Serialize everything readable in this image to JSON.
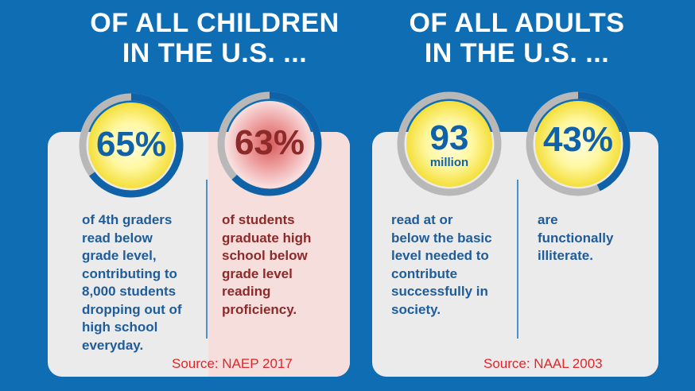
{
  "headings": {
    "children": [
      "OF ALL CHILDREN",
      "IN THE U.S. ..."
    ],
    "adults": [
      "OF ALL ADULTS",
      "IN THE U.S. ..."
    ]
  },
  "children": {
    "stat1": {
      "value": "65%",
      "text": [
        "of 4th graders",
        "read below",
        "grade level,",
        "contributing to",
        "8,000 students",
        "dropping out of",
        "high school",
        "everyday."
      ]
    },
    "stat2": {
      "value": "63%",
      "text": [
        "of students",
        "graduate high",
        "school below",
        "grade level",
        "reading",
        "proficiency."
      ]
    },
    "source": "Source: NAEP 2017"
  },
  "adults": {
    "stat1": {
      "value": "93",
      "unit": "million",
      "text": [
        "read at or",
        "below the basic",
        "level needed to",
        "contribute",
        "successfully in",
        "society."
      ]
    },
    "stat2": {
      "value": "43%",
      "text": [
        "are",
        "functionally",
        "illiterate."
      ]
    },
    "source": "Source: NAAL 2003"
  },
  "colors": {
    "background": "#0f6db3",
    "panel": "#ebebeb",
    "pink_panel": "#f6dedd",
    "blue_text": "#1f5c9a",
    "red_text": "#8c2a2a",
    "source_text": "#e0262a",
    "ring_blue": "#0f62a8",
    "ring_grey": "#b8b8b8"
  }
}
